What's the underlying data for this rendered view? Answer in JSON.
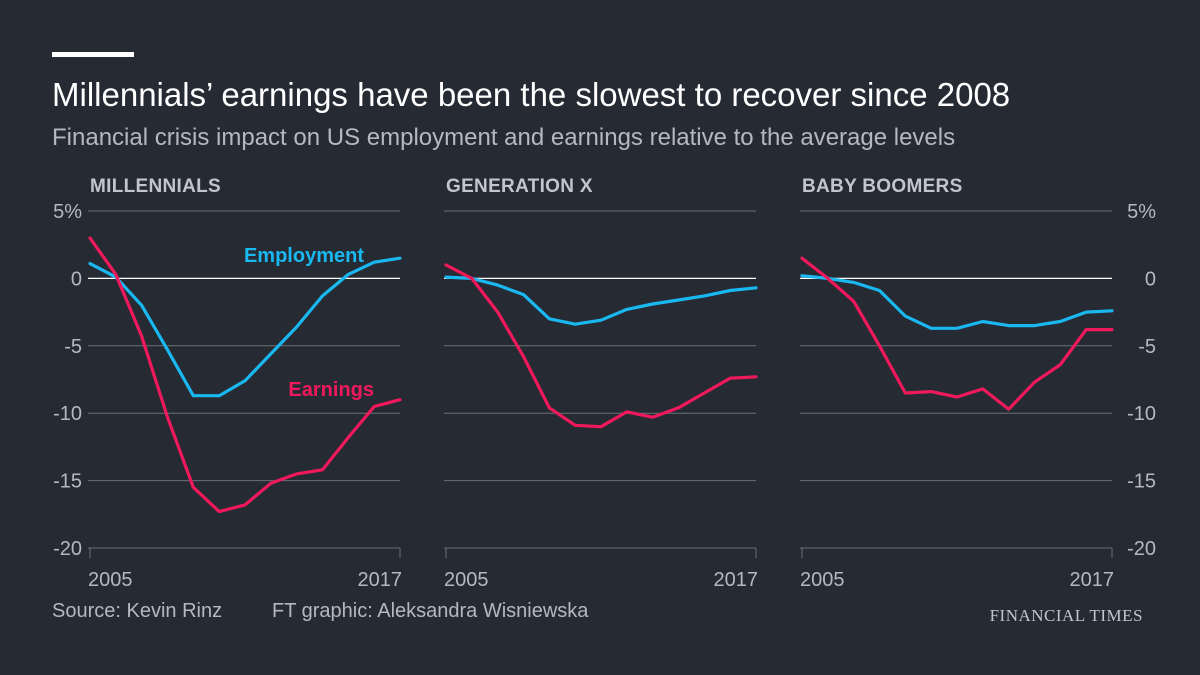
{
  "header": {
    "title": "Millennials’ earnings have been the slowest to recover since 2008",
    "subtitle": "Financial crisis impact on US employment and earnings relative to the average levels"
  },
  "footer": {
    "source": "Source: Kevin Rinz",
    "credit": "FT graphic: Aleksandra Wisniewska",
    "brand": "FINANCIAL TIMES"
  },
  "colors": {
    "background": "#262a33",
    "employment": "#1ab8f0",
    "earnings": "#f0195c",
    "grid": "#6b6f78",
    "zero": "#ffffff",
    "text": "#b5b8c0"
  },
  "chart_data": {
    "type": "line",
    "x": [
      2005,
      2006,
      2007,
      2008,
      2009,
      2010,
      2011,
      2012,
      2013,
      2014,
      2015,
      2016,
      2017
    ],
    "x_tick_labels": [
      "2005",
      "2017"
    ],
    "ylim": [
      -20,
      5
    ],
    "y_ticks": [
      5,
      0,
      -5,
      -10,
      -15,
      -20
    ],
    "y_tick_labels": [
      "5%",
      "0",
      "-5",
      "-10",
      "-15",
      "-20"
    ],
    "grid": true,
    "series_labels": {
      "employment": "Employment",
      "earnings": "Earnings"
    },
    "panels": [
      {
        "title": "MILLENNIALS",
        "series": [
          {
            "name": "Employment",
            "values": [
              1.1,
              0.1,
              -2.0,
              -5.3,
              -8.7,
              -8.7,
              -7.6,
              -5.6,
              -3.6,
              -1.3,
              0.3,
              1.2,
              1.5
            ]
          },
          {
            "name": "Earnings",
            "values": [
              3.0,
              0.3,
              -4.3,
              -10.3,
              -15.5,
              -17.3,
              -16.8,
              -15.2,
              -14.5,
              -14.2,
              -11.8,
              -9.5,
              -9.0
            ]
          }
        ]
      },
      {
        "title": "GENERATION X",
        "series": [
          {
            "name": "Employment",
            "values": [
              0.1,
              0.0,
              -0.5,
              -1.2,
              -3.0,
              -3.4,
              -3.1,
              -2.3,
              -1.9,
              -1.6,
              -1.3,
              -0.9,
              -0.7
            ]
          },
          {
            "name": "Earnings",
            "values": [
              1.0,
              0.0,
              -2.5,
              -5.8,
              -9.6,
              -10.9,
              -11.0,
              -9.9,
              -10.3,
              -9.6,
              -8.5,
              -7.4,
              -7.3
            ]
          }
        ]
      },
      {
        "title": "BABY BOOMERS",
        "series": [
          {
            "name": "Employment",
            "values": [
              0.2,
              0.0,
              -0.3,
              -0.9,
              -2.8,
              -3.7,
              -3.7,
              -3.2,
              -3.5,
              -3.5,
              -3.2,
              -2.5,
              -2.4
            ]
          },
          {
            "name": "Earnings",
            "values": [
              1.5,
              0.0,
              -1.7,
              -5.0,
              -8.5,
              -8.4,
              -8.8,
              -8.2,
              -9.7,
              -7.7,
              -6.4,
              -3.8,
              -3.8
            ]
          }
        ]
      }
    ]
  }
}
